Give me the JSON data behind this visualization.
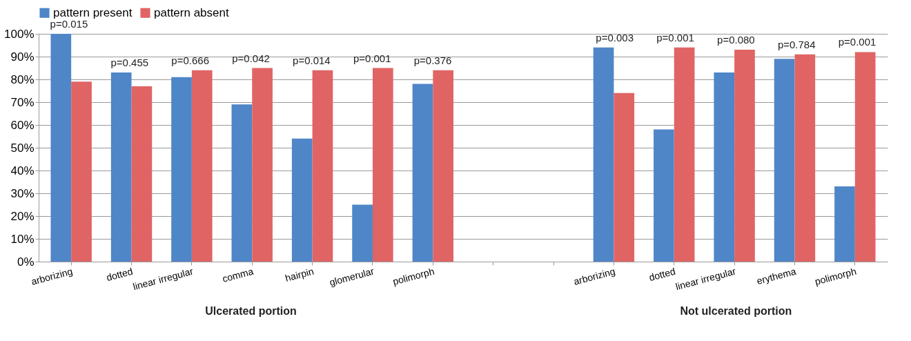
{
  "chart_data": {
    "type": "bar",
    "categories": [
      "arborizing",
      "dotted",
      "linear irregular",
      "comma",
      "hairpin",
      "glomerular",
      "polimorph",
      null,
      null,
      "arborizing",
      "dotted",
      "linear irregular",
      "erythema",
      "polimorph"
    ],
    "series": [
      {
        "name": "pattern present",
        "color": "#4f86c8",
        "values": [
          100,
          83,
          81,
          69,
          54,
          25,
          78,
          null,
          null,
          94,
          58,
          83,
          89,
          33
        ]
      },
      {
        "name": "pattern absent",
        "color": "#e06464",
        "values": [
          79,
          77,
          84,
          85,
          84,
          85,
          84,
          null,
          null,
          74,
          94,
          93,
          91,
          92
        ]
      }
    ],
    "ylim": [
      0,
      100
    ],
    "yticks": [
      {
        "value": 0,
        "label": "0%"
      },
      {
        "value": 10,
        "label": "10%"
      },
      {
        "value": 20,
        "label": "20%"
      },
      {
        "value": 30,
        "label": "30%"
      },
      {
        "value": 40,
        "label": "40%"
      },
      {
        "value": 50,
        "label": "50%"
      },
      {
        "value": 60,
        "label": "60%"
      },
      {
        "value": 70,
        "label": "70%"
      },
      {
        "value": 80,
        "label": "80%"
      },
      {
        "value": 90,
        "label": "90%"
      },
      {
        "value": 100,
        "label": "100%"
      }
    ],
    "grid": "y",
    "legend": "top",
    "annotations": [
      "p=0.015",
      "p=0.455",
      "p=0.666",
      "p=0.042",
      "p=0.014",
      "p=0.001",
      "p=0.376",
      "p=0.003",
      "p=0.001",
      "p=0.080",
      "p=0.784",
      "p=0.001",
      "Ulcerated portion",
      "Not ulcerated portion"
    ]
  }
}
